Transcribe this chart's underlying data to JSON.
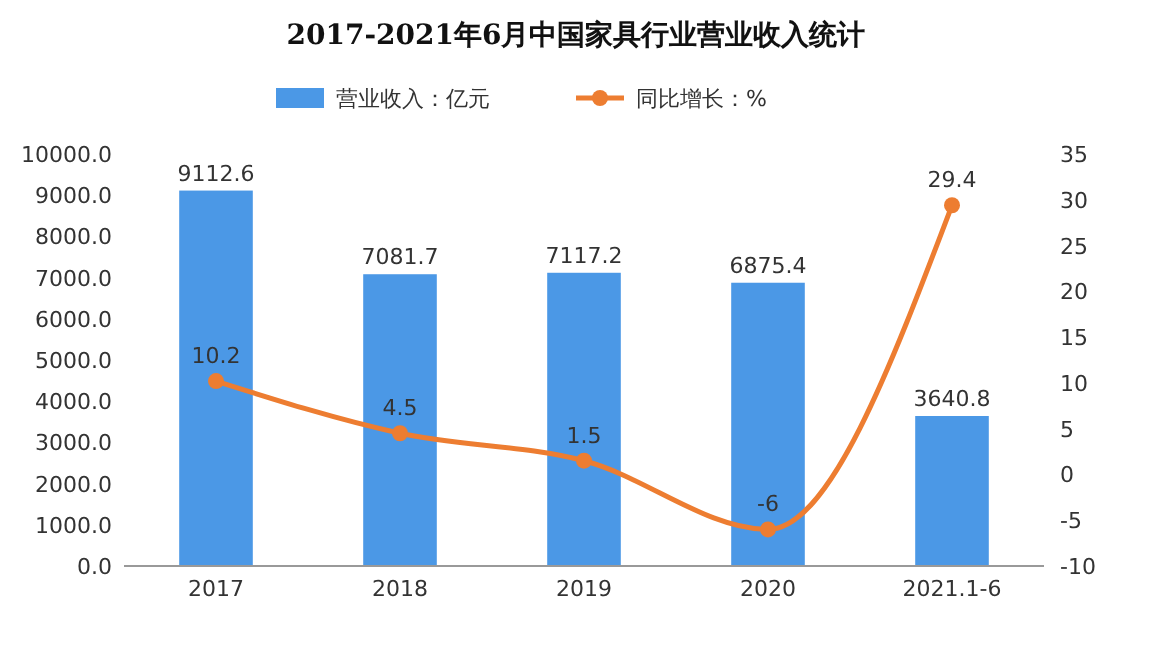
{
  "chart_data": {
    "type": "bar",
    "title": "2017-2021年6月中国家具行业营业收入统计",
    "categories": [
      "2017",
      "2018",
      "2019",
      "2020",
      "2021.1-6"
    ],
    "series": [
      {
        "name": "营业收入：亿元",
        "color": "#4b98e6",
        "values": [
          9112.6,
          7081.7,
          7117.2,
          6875.4,
          3640.8
        ]
      },
      {
        "name": "同比增长：%",
        "type": "line",
        "axis": "y2",
        "color": "#ed7d31",
        "marker": "circle",
        "values": [
          10.2,
          4.5,
          1.5,
          -6,
          29.4
        ]
      }
    ],
    "ylim": [
      0,
      10000
    ],
    "yticks": [
      {
        "value": 0,
        "label": "0.0"
      },
      {
        "value": 1000,
        "label": "1000.0"
      },
      {
        "value": 2000,
        "label": "2000.0"
      },
      {
        "value": 3000,
        "label": "3000.0"
      },
      {
        "value": 4000,
        "label": "4000.0"
      },
      {
        "value": 5000,
        "label": "5000.0"
      },
      {
        "value": 6000,
        "label": "6000.0"
      },
      {
        "value": 7000,
        "label": "7000.0"
      },
      {
        "value": 8000,
        "label": "8000.0"
      },
      {
        "value": 9000,
        "label": "9000.0"
      },
      {
        "value": 10000,
        "label": "10000.0"
      }
    ],
    "y2lim": [
      -10,
      35
    ],
    "y2ticks": [
      -10,
      -5,
      0,
      5,
      10,
      15,
      20,
      25,
      30,
      35
    ],
    "data_labels": true,
    "legend": "top",
    "grid": false
  }
}
